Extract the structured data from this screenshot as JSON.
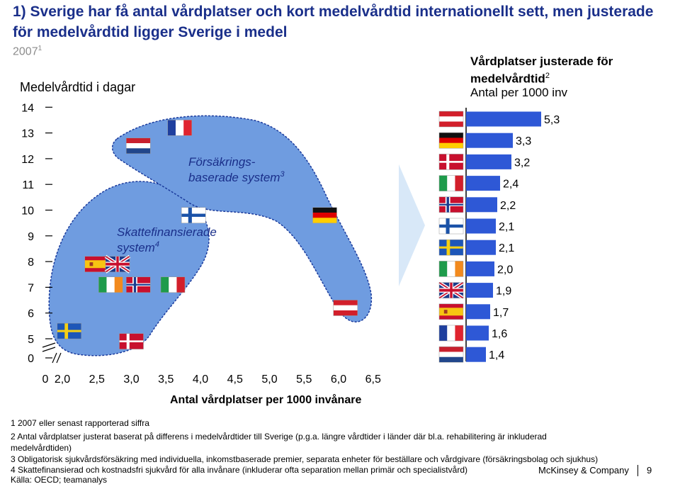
{
  "title": "1) Sverige har få antal vårdplatser och kort medelvårdtid internationellt sett, men justerade för medelvårdtid ligger Sverige i medel",
  "subtitle_year": "2007",
  "subtitle_note": "1",
  "colors": {
    "title": "#1a2f8a",
    "blob": "#6f9ce0",
    "bar": "#2e58d6",
    "arrow": "#d8e8f8"
  },
  "chart_data": [
    {
      "type": "scatter",
      "ylabel": "Medelvårdtid i dagar",
      "xlabel": "Antal vårdplatser per 1000 invånare",
      "x_ticks": [
        "0",
        "2,0",
        "2,5",
        "3,0",
        "3,5",
        "4,0",
        "4,5",
        "5,0",
        "5,5",
        "6,0",
        "6,5"
      ],
      "y_ticks": [
        "0",
        "5",
        "6",
        "7",
        "8",
        "9",
        "10",
        "11",
        "12",
        "13",
        "14"
      ],
      "xlim": [
        1.9,
        6.7
      ],
      "ylim": [
        4.3,
        14.0
      ],
      "axis_breaks": true,
      "groups": [
        {
          "label": "Skattefinansierade system",
          "note": "4"
        },
        {
          "label": "Försäkrings-baserade system",
          "note": "3"
        }
      ],
      "points": [
        {
          "country": "Sverige",
          "flag": "se",
          "x": 2.1,
          "y": 5.3
        },
        {
          "country": "Danmark",
          "flag": "dk",
          "x": 3.0,
          "y": 4.9
        },
        {
          "country": "Spanien",
          "flag": "es",
          "x": 2.5,
          "y": 7.9
        },
        {
          "country": "Storbritannien",
          "flag": "gb",
          "x": 2.8,
          "y": 7.9
        },
        {
          "country": "Irland",
          "flag": "ie",
          "x": 2.7,
          "y": 7.1
        },
        {
          "country": "Norge",
          "flag": "no",
          "x": 3.1,
          "y": 7.1
        },
        {
          "country": "Italien",
          "flag": "it",
          "x": 3.6,
          "y": 7.1
        },
        {
          "country": "Finland",
          "flag": "fi",
          "x": 3.9,
          "y": 9.8
        },
        {
          "country": "Nederländerna",
          "flag": "nl",
          "x": 3.1,
          "y": 12.5
        },
        {
          "country": "Frankrike",
          "flag": "fr",
          "x": 3.7,
          "y": 13.2
        },
        {
          "country": "Tyskland",
          "flag": "de",
          "x": 5.8,
          "y": 9.8
        },
        {
          "country": "Österrike",
          "flag": "at",
          "x": 6.1,
          "y": 6.2
        }
      ]
    },
    {
      "type": "bar",
      "title": "Vårdplatser justerade för medelvårdtid",
      "title_note": "2",
      "subtitle": "Antal per 1000 inv",
      "categories": [
        "Österrike",
        "Tyskland",
        "Danmark",
        "Italien",
        "Norge",
        "Finland",
        "Sverige",
        "Irland",
        "Storbritannien",
        "Spanien",
        "Frankrike",
        "Nederländerna"
      ],
      "flags": [
        "at",
        "de",
        "dk",
        "it",
        "no",
        "fi",
        "se",
        "ie",
        "gb",
        "es",
        "fr",
        "nl"
      ],
      "values": [
        5.3,
        3.3,
        3.2,
        2.4,
        2.2,
        2.1,
        2.1,
        2.0,
        1.9,
        1.7,
        1.6,
        1.4
      ],
      "labels": [
        "5,3",
        "3,3",
        "3,2",
        "2,4",
        "2,2",
        "2,1",
        "2,1",
        "2,0",
        "1,9",
        "1,7",
        "1,6",
        "1,4"
      ]
    }
  ],
  "footnotes": [
    "1 2007 eller senast rapporterad siffra",
    "2 Antal vårdplatser justerat baserat på differens i medelvårdtider till Sverige (p.g.a. längre vårdtider i länder där bl.a. rehabilitering är inkluderad",
    "medelvårdtiden)",
    "3 Obligatorisk sjukvårdsförsäkring med individuella, inkomstbaserade premier, separata enheter för beställare och vårdgivare (försäkringsbolag och sjukhus)",
    "4 Skattefinansierad och kostnadsfri sjukvård för alla invånare (inkluderar ofta separation mellan primär och specialistvård)",
    "Källa: OECD; teamanalys"
  ],
  "brand": "McKinsey & Company",
  "page_number": "9"
}
